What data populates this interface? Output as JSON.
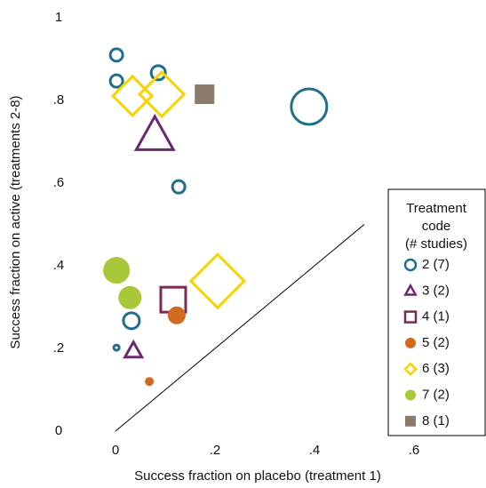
{
  "chart_data": {
    "type": "scatter",
    "x_label": "Success fraction on placebo (treatment 1)",
    "y_label": "Success fraction on active (treatments 2-8)",
    "xlim": [
      -0.05,
      0.6
    ],
    "ylim": [
      0,
      1
    ],
    "xticks": [
      0,
      {
        "value": 0.2,
        "label": ".2"
      },
      {
        "value": 0.4,
        "label": ".4"
      },
      {
        "value": 0.6,
        "label": ".6"
      }
    ],
    "yticks": [
      0,
      {
        "value": 0.2,
        "label": ".2"
      },
      {
        "value": 0.4,
        "label": ".4"
      },
      {
        "value": 0.6,
        "label": ".6"
      },
      {
        "value": 0.8,
        "label": ".8"
      },
      1
    ],
    "legend_title": [
      "Treatment",
      "code",
      "(# studies)"
    ],
    "diagonal": {
      "x": [
        0,
        0.5
      ],
      "y": [
        0,
        0.5
      ],
      "color": "#000000"
    },
    "series": [
      {
        "name": "2 (7)",
        "color": "#1f6e8c",
        "marker": "circle",
        "filled": false,
        "x": [
          0.002,
          0.002,
          0.086,
          0.389,
          0.127,
          0.032,
          0.002
        ],
        "y": [
          0.91,
          0.847,
          0.867,
          0.785,
          0.591,
          0.267,
          0.202
        ],
        "sizes": [
          7,
          7,
          8,
          20,
          7,
          9,
          3
        ]
      },
      {
        "name": "3 (2)",
        "color": "#6b2a6f",
        "marker": "triangle",
        "filled": false,
        "x": [
          0.079,
          0.036
        ],
        "y": [
          0.714,
          0.194
        ],
        "sizes": [
          22,
          10
        ]
      },
      {
        "name": "4 (1)",
        "color": "#7b2a55",
        "marker": "square",
        "filled": false,
        "x": [
          0.116
        ],
        "y": [
          0.318
        ],
        "sizes": [
          14
        ]
      },
      {
        "name": "5 (2)",
        "color": "#d2691e",
        "marker": "circle",
        "filled": true,
        "x": [
          0.123,
          0.068
        ],
        "y": [
          0.28,
          0.12
        ],
        "sizes": [
          10,
          5
        ]
      },
      {
        "name": "6 (3)",
        "color": "#f5d400",
        "marker": "diamond",
        "filled": false,
        "x": [
          0.034,
          0.093,
          0.205
        ],
        "y": [
          0.811,
          0.815,
          0.363
        ],
        "sizes": [
          22,
          25,
          30
        ]
      },
      {
        "name": "7 (2)",
        "color": "#a8c83a",
        "marker": "circle",
        "filled": true,
        "x": [
          0.002,
          0.029
        ],
        "y": [
          0.389,
          0.323
        ],
        "sizes": [
          15,
          13
        ]
      },
      {
        "name": "8 (1)",
        "color": "#8b7b6b",
        "marker": "square",
        "filled": true,
        "x": [
          0.179
        ],
        "y": [
          0.815
        ],
        "sizes": [
          11
        ]
      }
    ]
  }
}
